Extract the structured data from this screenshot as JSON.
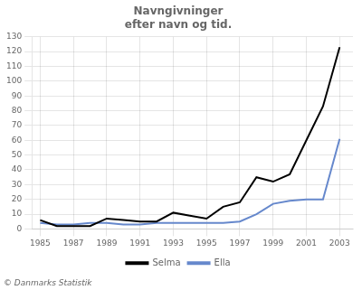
{
  "chart_data": {
    "type": "line",
    "title": "Navngivninger\nefter navn og tid.",
    "x": [
      1985,
      1986,
      1987,
      1988,
      1989,
      1990,
      1991,
      1992,
      1993,
      1994,
      1995,
      1996,
      1997,
      1998,
      1999,
      2000,
      2001,
      2002,
      2003
    ],
    "series": [
      {
        "name": "Selma",
        "color": "#000000",
        "values": [
          6,
          2,
          2,
          2,
          7,
          6,
          5,
          5,
          11,
          9,
          7,
          15,
          18,
          35,
          32,
          37,
          60,
          83,
          123
        ]
      },
      {
        "name": "Ella",
        "color": "#6688cc",
        "values": [
          4,
          3,
          3,
          4,
          4,
          3,
          3,
          4,
          4,
          4,
          4,
          4,
          5,
          10,
          17,
          19,
          20,
          20,
          61
        ]
      }
    ],
    "xlim": [
      1984.5,
      2003.8
    ],
    "xticks": [
      1985,
      1987,
      1989,
      1991,
      1993,
      1995,
      1997,
      1999,
      2001,
      2003
    ],
    "ylim": [
      0,
      130
    ],
    "yticks": [
      0,
      10,
      20,
      30,
      40,
      50,
      60,
      70,
      80,
      90,
      100,
      110,
      120,
      130
    ],
    "grid": true,
    "legend": "bottom",
    "annotations": [
      "© Danmarks Statistik"
    ]
  }
}
